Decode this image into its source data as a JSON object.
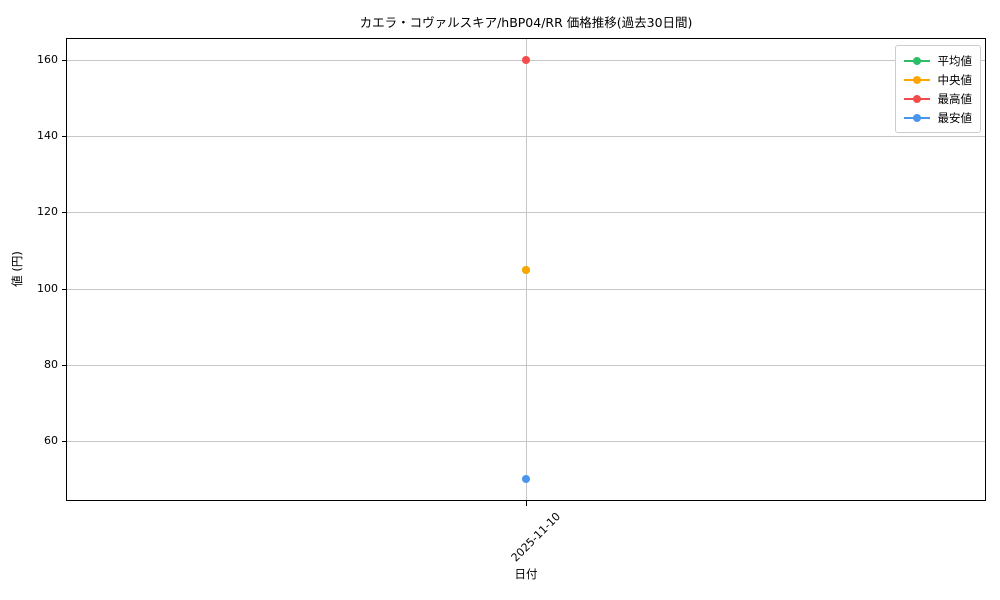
{
  "chart_data": {
    "type": "line",
    "title": "カエラ・コヴァルスキア/hBP04/RR 価格推移(過去30日間)",
    "xlabel": "日付",
    "ylabel": "値 (円)",
    "x": [
      "2025-11-10"
    ],
    "series": [
      {
        "name": "平均値",
        "color": "#2dbd69",
        "values": [
          105
        ],
        "note": "hidden behind median marker"
      },
      {
        "name": "中央値",
        "color": "#ffa500",
        "values": [
          105
        ]
      },
      {
        "name": "最高値",
        "color": "#f34b4b",
        "values": [
          160
        ]
      },
      {
        "name": "最安値",
        "color": "#4a96ec",
        "values": [
          50
        ]
      }
    ],
    "yticks": [
      60,
      80,
      100,
      120,
      140,
      160
    ],
    "ylim": [
      44.5,
      165.5
    ],
    "grid": true,
    "grid_color": "#c6c6c6",
    "legend_position": "upper right",
    "x_tick_rotation_deg": 45
  }
}
